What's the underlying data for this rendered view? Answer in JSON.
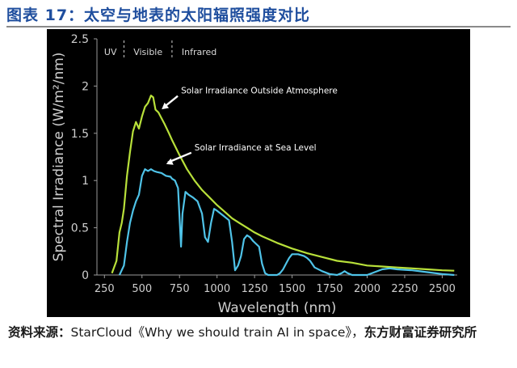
{
  "figure": {
    "title": "图表 17：太空与地表的太阳辐照强度对比",
    "source_label": "资料来源：",
    "source_text": "StarCloud《Why we should train AI in space》，",
    "source_publisher": "东方财富证券研究所"
  },
  "colors": {
    "panel_background": "#000000",
    "axis_text": "#cfcfcf",
    "outside_atmosphere": "#b8e03a",
    "sea_level": "#4fc3e8",
    "annotation": "#ffffff"
  },
  "chart_data": {
    "type": "line",
    "title": "",
    "xlabel": "Wavelength (nm)",
    "ylabel": "Spectral Irradiance (W/m²/nm)",
    "xlim": [
      200,
      2600
    ],
    "ylim": [
      0,
      2.5
    ],
    "x_ticks": [
      "250",
      "500",
      "750",
      "1000",
      "1250",
      "1500",
      "1750",
      "2000",
      "2250",
      "2500"
    ],
    "x_tick_values": [
      250,
      500,
      750,
      1000,
      1250,
      1500,
      1750,
      2000,
      2250,
      2500
    ],
    "y_ticks": [
      "0",
      "0.5",
      "1",
      "1.5",
      "2",
      "2.5"
    ],
    "y_tick_values": [
      0,
      0.5,
      1,
      1.5,
      2,
      2.5
    ],
    "grid": false,
    "region_labels": [
      {
        "label": "UV",
        "x_start": 200,
        "x_end": 380
      },
      {
        "label": "Visible",
        "x_start": 380,
        "x_end": 700
      },
      {
        "label": "Infrared",
        "x_start": 700,
        "x_end": 2600
      }
    ],
    "region_dividers": [
      380,
      700
    ],
    "annotations": [
      {
        "text": "Solar Irradiance Outside Atmosphere",
        "series": "outside_atmosphere",
        "point": [
          610,
          1.72
        ],
        "text_at": [
          760,
          1.92
        ]
      },
      {
        "text": "Solar Irradiance at Sea Level",
        "series": "sea_level",
        "point": [
          640,
          1.14
        ],
        "text_at": [
          850,
          1.32
        ]
      }
    ],
    "series": [
      {
        "key": "outside_atmosphere",
        "x": [
          300,
          330,
          350,
          365,
          380,
          400,
          420,
          440,
          460,
          480,
          500,
          520,
          540,
          560,
          575,
          590,
          610,
          630,
          650,
          680,
          700,
          750,
          800,
          850,
          900,
          950,
          1000,
          1050,
          1100,
          1150,
          1200,
          1250,
          1300,
          1400,
          1500,
          1600,
          1700,
          1800,
          1900,
          2000,
          2100,
          2200,
          2300,
          2400,
          2500,
          2580
        ],
        "y": [
          0.02,
          0.15,
          0.45,
          0.55,
          0.7,
          1.05,
          1.3,
          1.52,
          1.62,
          1.55,
          1.68,
          1.78,
          1.82,
          1.9,
          1.88,
          1.75,
          1.72,
          1.66,
          1.6,
          1.5,
          1.43,
          1.27,
          1.12,
          1.0,
          0.9,
          0.82,
          0.74,
          0.67,
          0.6,
          0.55,
          0.5,
          0.45,
          0.41,
          0.34,
          0.28,
          0.23,
          0.19,
          0.15,
          0.13,
          0.1,
          0.09,
          0.08,
          0.07,
          0.06,
          0.05,
          0.045
        ]
      },
      {
        "key": "sea_level",
        "x": [
          350,
          380,
          400,
          420,
          440,
          460,
          480,
          500,
          520,
          540,
          560,
          580,
          600,
          630,
          660,
          690,
          700,
          720,
          740,
          760,
          770,
          790,
          810,
          840,
          870,
          900,
          920,
          940,
          960,
          980,
          1000,
          1040,
          1080,
          1100,
          1120,
          1140,
          1160,
          1180,
          1200,
          1220,
          1240,
          1260,
          1280,
          1300,
          1320,
          1340,
          1360,
          1380,
          1400,
          1420,
          1440,
          1460,
          1480,
          1500,
          1540,
          1580,
          1600,
          1620,
          1650,
          1700,
          1750,
          1800,
          1830,
          1850,
          1870,
          1900,
          1950,
          2000,
          2050,
          2100,
          2150,
          2200,
          2300,
          2400,
          2500,
          2580
        ],
        "y": [
          0,
          0.1,
          0.35,
          0.55,
          0.68,
          0.78,
          0.85,
          1.05,
          1.12,
          1.1,
          1.12,
          1.1,
          1.09,
          1.08,
          1.05,
          1.04,
          1.02,
          1.0,
          0.92,
          0.3,
          0.65,
          0.88,
          0.85,
          0.82,
          0.78,
          0.65,
          0.4,
          0.35,
          0.55,
          0.7,
          0.68,
          0.63,
          0.58,
          0.35,
          0.05,
          0.1,
          0.2,
          0.38,
          0.42,
          0.4,
          0.36,
          0.33,
          0.3,
          0.12,
          0.02,
          0,
          0,
          0,
          0,
          0.02,
          0.06,
          0.12,
          0.18,
          0.22,
          0.22,
          0.2,
          0.18,
          0.15,
          0.08,
          0.04,
          0.01,
          0,
          0.02,
          0.04,
          0.02,
          0,
          0,
          0,
          0.03,
          0.06,
          0.07,
          0.06,
          0.05,
          0.03,
          0.01,
          0
        ]
      }
    ]
  }
}
